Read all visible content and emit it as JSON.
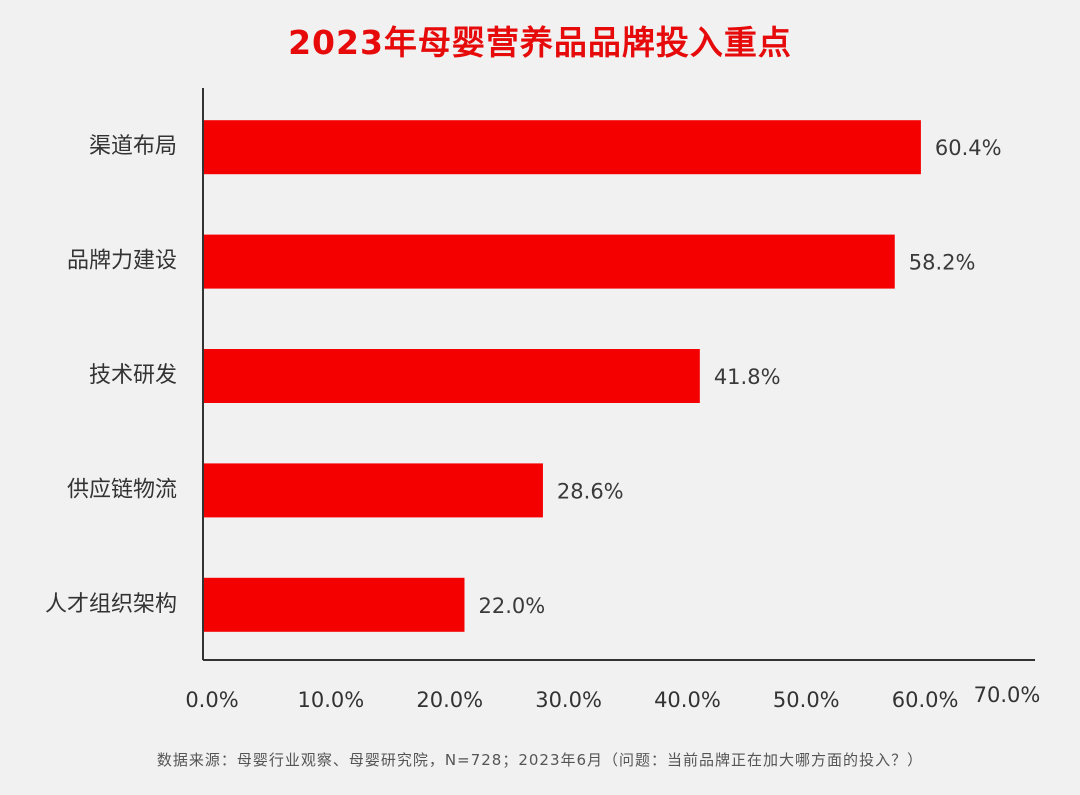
{
  "title": "2023年母婴营养品品牌投入重点",
  "source": "数据来源：母婴行业观察、母婴研究院，N=728；2023年6月（问题：当前品牌正在加大哪方面的投入？）",
  "colors": {
    "bar": "#f50000",
    "title": "#e60a0a",
    "axis": "#333333",
    "background": "#f1f1f1"
  },
  "chart_data": {
    "type": "bar",
    "orientation": "horizontal",
    "title": "2023年母婴营养品品牌投入重点",
    "categories": [
      "渠道布局",
      "品牌力建设",
      "技术研发",
      "供应链物流",
      "人才组织架构"
    ],
    "values": [
      60.4,
      58.2,
      41.8,
      28.6,
      22.0
    ],
    "value_labels": [
      "60.4%",
      "58.2%",
      "41.8%",
      "28.6%",
      "22.0%"
    ],
    "xlim": [
      0,
      70
    ],
    "x_ticks": [
      0,
      10,
      20,
      30,
      40,
      50,
      60,
      70
    ],
    "x_tick_labels": [
      "0.0%",
      "10.0%",
      "20.0%",
      "30.0%",
      "40.0%",
      "50.0%",
      "60.0%",
      "70.0%"
    ],
    "grid": false,
    "legend": "none"
  }
}
